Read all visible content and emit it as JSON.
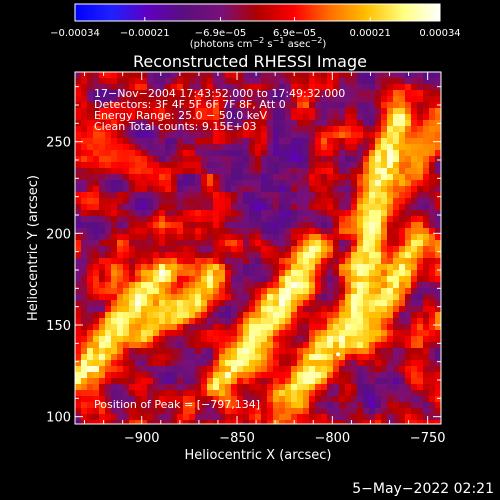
{
  "chart_data": {
    "type": "heatmap",
    "title": "Reconstructed RHESSI Image",
    "xlabel": "Heliocentric X (arcsec)",
    "ylabel": "Heliocentric Y (arcsec)",
    "xlim": [
      -935,
      -743
    ],
    "ylim": [
      96,
      288
    ],
    "x_ticks": [
      -900,
      -850,
      -800,
      -750
    ],
    "x_tick_labels": [
      "−900",
      "−850",
      "−800",
      "−750"
    ],
    "y_ticks": [
      100,
      150,
      200,
      250
    ],
    "y_tick_labels": [
      "100",
      "150",
      "200",
      "250"
    ],
    "colorbar": {
      "range": [
        -0.00034,
        0.00034
      ],
      "tick_values": [
        -0.00034,
        -0.00021,
        -6.9e-05,
        6.9e-05,
        0.00021,
        0.00034
      ],
      "tick_labels": [
        "−0.00034",
        "−0.00021",
        "−6.9e−05",
        "6.9e−05",
        "0.00021",
        "0.00034"
      ],
      "units_main": "(photons cm",
      "units_sup1": "−2",
      "units_mid": " s",
      "units_sup2": "−1",
      "units_end": " asec",
      "units_sup3": "−2",
      "units_close": ")",
      "colors": [
        "#0000ff",
        "#2020ff",
        "#6000c0",
        "#5a0f7d",
        "#78107a",
        "#b00000",
        "#ff0000",
        "#ff7000",
        "#ffc000",
        "#ffff80",
        "#ffffff"
      ]
    },
    "annotations": [
      "17−Nov−2004 17:43:52.000 to 17:49:32.000",
      "Detectors: 3F 4F 5F 6F 7F 8F, Att 0",
      "Energy Range: 25.0 − 50.0 keV",
      "Clean      Total counts: 9.15E+03"
    ],
    "peak_label": "Position of Peak = [−797,134]",
    "peak": [
      -797,
      134
    ],
    "grid": false,
    "bright_ridges": [
      {
        "x": [
          -935,
          -924,
          -912,
          -900,
          -888
        ],
        "y": [
          120,
          132,
          150,
          165,
          180
        ],
        "value": 0.00034
      },
      {
        "x": [
          -900,
          -888,
          -875,
          -862
        ],
        "y": [
          145,
          156,
          162,
          176
        ],
        "value": 0.0003
      },
      {
        "x": [
          -860,
          -847,
          -838,
          -828,
          -818,
          -808
        ],
        "y": [
          118,
          132,
          146,
          160,
          176,
          192
        ],
        "value": 0.00034
      },
      {
        "x": [
          -822,
          -810,
          -800,
          -790,
          -782,
          -778,
          -772,
          -765
        ],
        "y": [
          110,
          126,
          140,
          150,
          186,
          212,
          240,
          262
        ],
        "value": 0.00034
      },
      {
        "x": [
          -785,
          -775,
          -765,
          -755
        ],
        "y": [
          142,
          160,
          178,
          196
        ],
        "value": 0.0003
      },
      {
        "x": [
          -770,
          -760,
          -750,
          -744
        ],
        "y": [
          220,
          236,
          250,
          262
        ],
        "value": 0.0002
      },
      {
        "x": [
          -930,
          -910,
          -890
        ],
        "y": [
          250,
          240,
          232
        ],
        "value": 0.00012
      }
    ]
  },
  "footer": {
    "date": "5−May−2022 02:21"
  }
}
